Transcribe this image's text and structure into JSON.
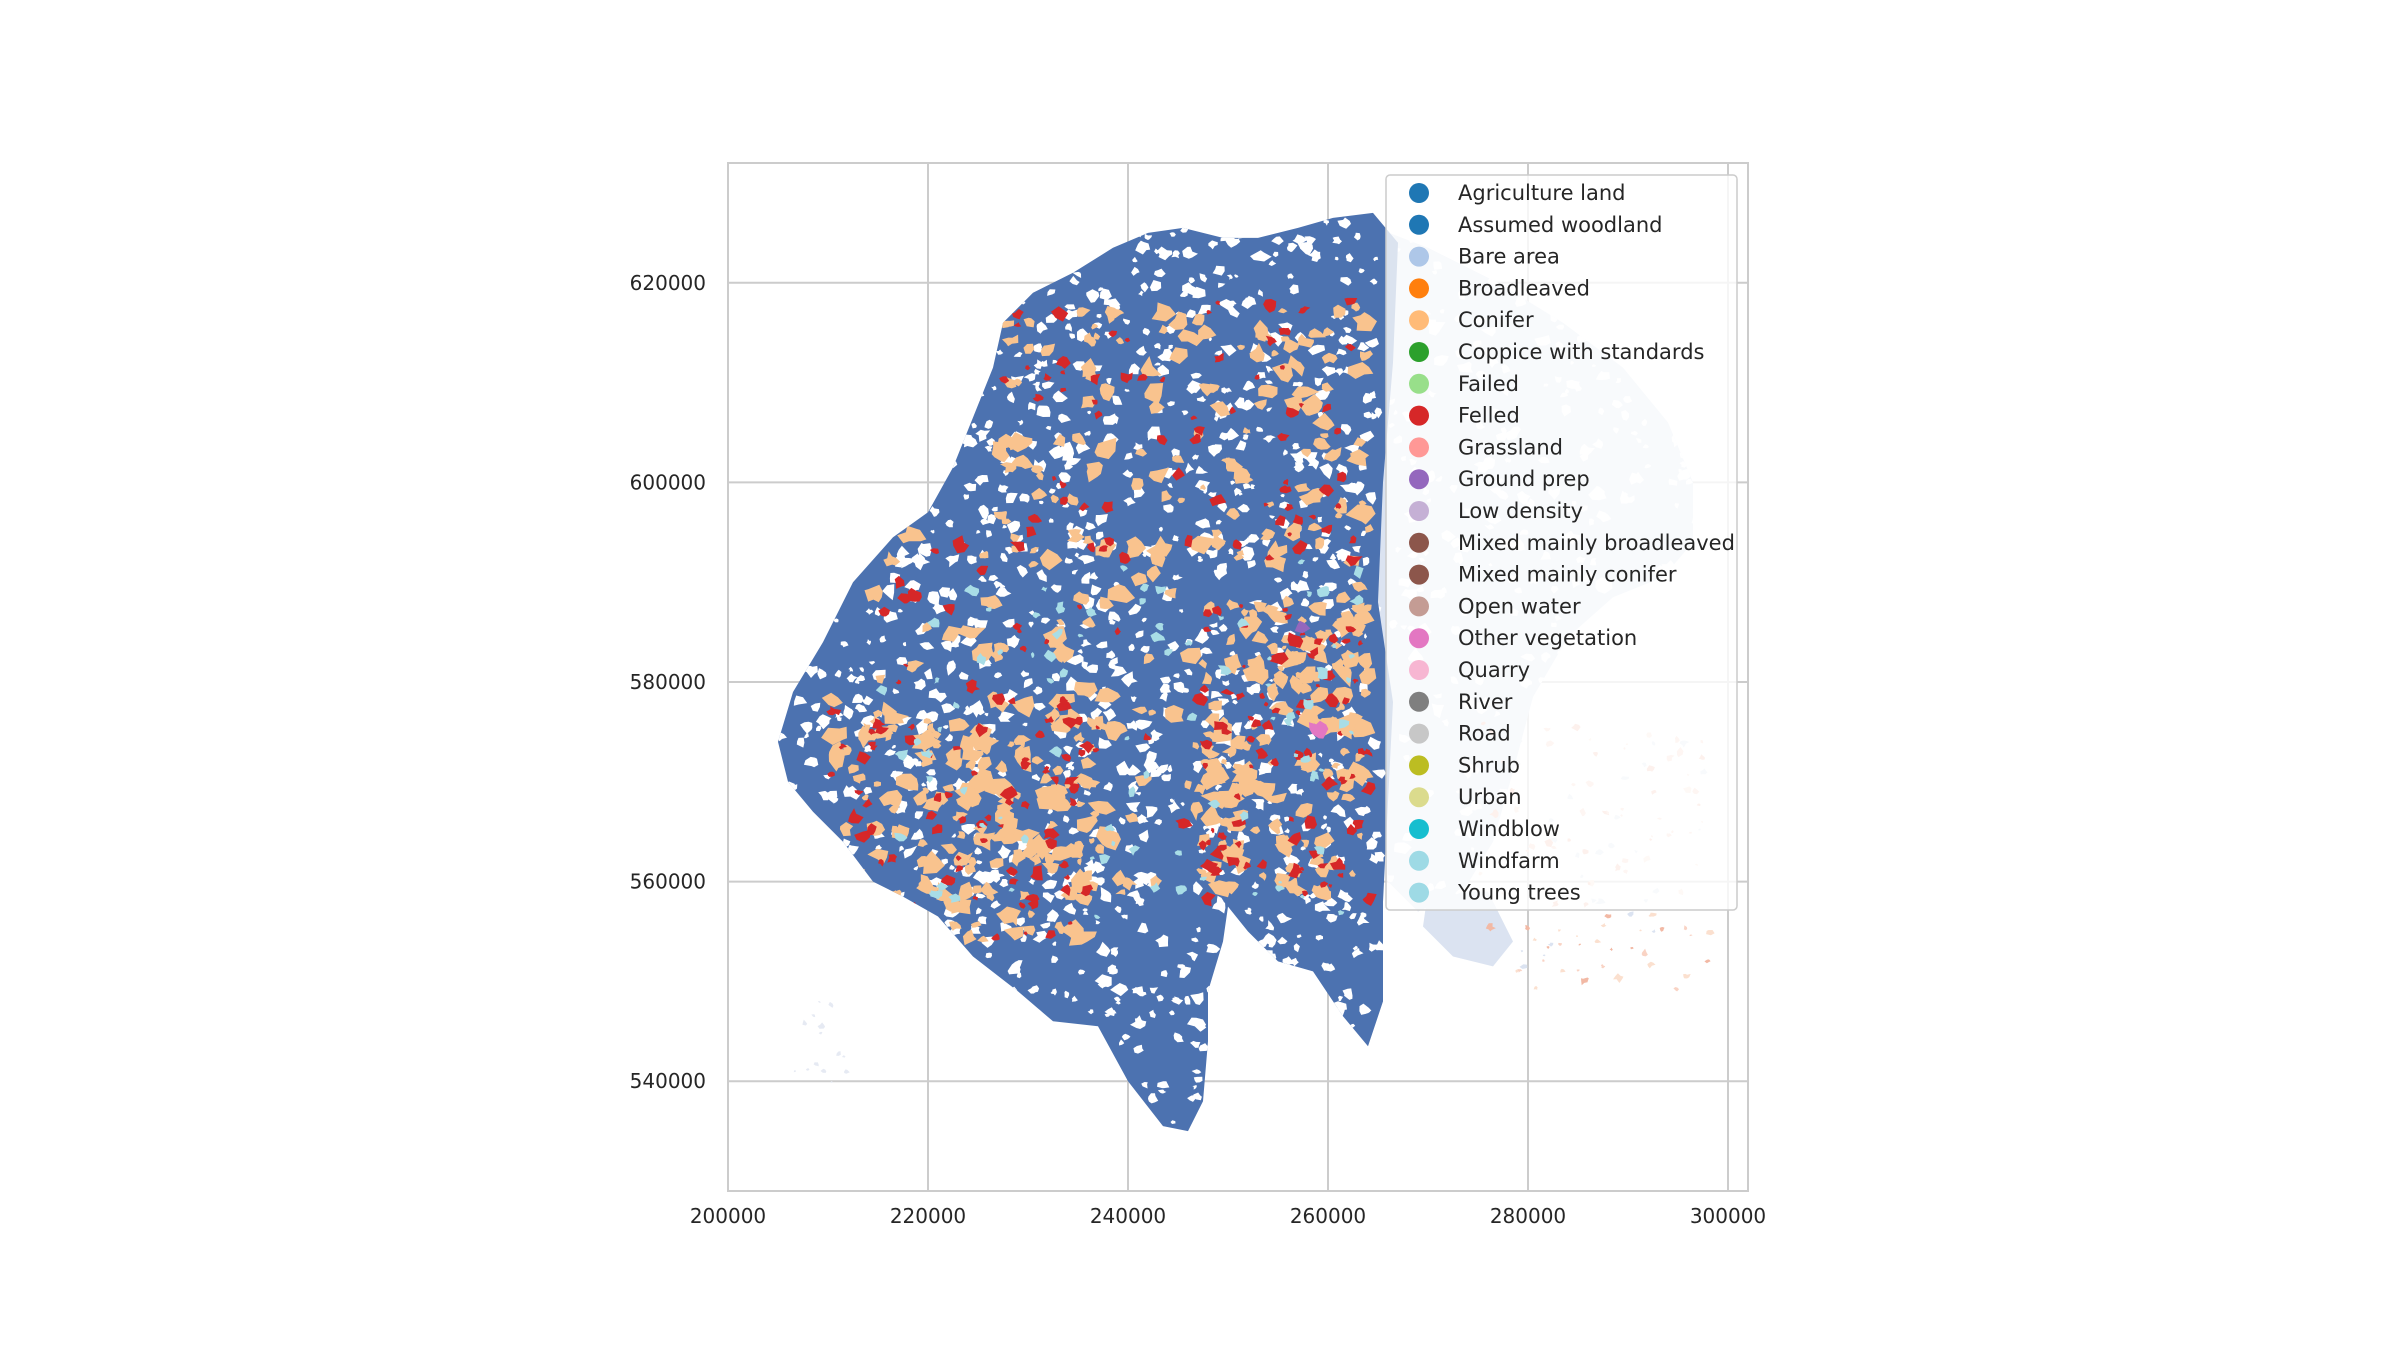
{
  "chart_data": {
    "type": "choropleth-map",
    "x_axis": {
      "range": [
        200000,
        302000
      ],
      "ticks": [
        200000,
        220000,
        240000,
        260000,
        280000,
        300000
      ],
      "tick_labels": [
        "200000",
        "220000",
        "240000",
        "260000",
        "280000",
        "300000"
      ]
    },
    "y_axis": {
      "range": [
        529000,
        632000
      ],
      "ticks": [
        540000,
        560000,
        580000,
        600000,
        620000
      ],
      "tick_labels": [
        "540000",
        "560000",
        "580000",
        "600000",
        "620000"
      ]
    },
    "grid": true,
    "legend": {
      "placement": "upper-right",
      "entries": [
        {
          "label": "Agriculture land",
          "color": "#1f77b4"
        },
        {
          "label": "Assumed woodland",
          "color": "#1f77b4"
        },
        {
          "label": "Bare area",
          "color": "#aec7e8"
        },
        {
          "label": "Broadleaved",
          "color": "#ff7f0e"
        },
        {
          "label": "Conifer",
          "color": "#ffbb78"
        },
        {
          "label": "Coppice with standards",
          "color": "#2ca02c"
        },
        {
          "label": "Failed",
          "color": "#98df8a"
        },
        {
          "label": "Felled",
          "color": "#d62728"
        },
        {
          "label": "Grassland",
          "color": "#ff9896"
        },
        {
          "label": "Ground prep",
          "color": "#9467bd"
        },
        {
          "label": "Low density",
          "color": "#c5b0d5"
        },
        {
          "label": "Mixed mainly broadleaved",
          "color": "#8c564b"
        },
        {
          "label": "Mixed mainly conifer",
          "color": "#8c564b"
        },
        {
          "label": "Open water",
          "color": "#c49c94"
        },
        {
          "label": "Other vegetation",
          "color": "#e377c2"
        },
        {
          "label": "Quarry",
          "color": "#f7b6d2"
        },
        {
          "label": "River",
          "color": "#7f7f7f"
        },
        {
          "label": "Road",
          "color": "#c7c7c7"
        },
        {
          "label": "Shrub",
          "color": "#bcbd22"
        },
        {
          "label": "Urban",
          "color": "#dbdb8d"
        },
        {
          "label": "Windblow",
          "color": "#17becf"
        },
        {
          "label": "Windfarm",
          "color": "#9edae5"
        },
        {
          "label": "Young trees",
          "color": "#9edae5"
        }
      ]
    },
    "map_colors": {
      "woodland_fill": "#4c72b0",
      "bare_area_fill": "#dbe3f1",
      "conifer_patch": "#f9c38e",
      "felled_patch": "#d62728",
      "young_trees_patch": "#a8dde6",
      "other_vegetation_patch": "#e377c2",
      "ground_prep_patch": "#9467bd"
    },
    "region_outline_data_units": {
      "woodland": [
        [
          205000,
          574000
        ],
        [
          206500,
          579000
        ],
        [
          209500,
          584000
        ],
        [
          212500,
          590000
        ],
        [
          216500,
          594500
        ],
        [
          220000,
          597000
        ],
        [
          222500,
          601500
        ],
        [
          224500,
          606500
        ],
        [
          226500,
          611500
        ],
        [
          227500,
          616000
        ],
        [
          230500,
          619000
        ],
        [
          234500,
          621000
        ],
        [
          238500,
          623500
        ],
        [
          242000,
          625000
        ],
        [
          245500,
          625500
        ],
        [
          249500,
          624500
        ],
        [
          253000,
          624500
        ],
        [
          257000,
          625500
        ],
        [
          260500,
          626500
        ],
        [
          264500,
          627000
        ],
        [
          267000,
          624000
        ],
        [
          266500,
          612000
        ],
        [
          265500,
          600000
        ],
        [
          265000,
          588000
        ],
        [
          266500,
          578000
        ],
        [
          266000,
          568000
        ],
        [
          265500,
          558000
        ],
        [
          265500,
          548000
        ],
        [
          264000,
          543500
        ],
        [
          261500,
          546500
        ],
        [
          258500,
          551000
        ],
        [
          255000,
          552000
        ],
        [
          252000,
          555000
        ],
        [
          250000,
          557500
        ],
        [
          249500,
          554000
        ],
        [
          248000,
          549000
        ],
        [
          248000,
          544000
        ],
        [
          247500,
          538000
        ],
        [
          246000,
          535000
        ],
        [
          243500,
          535500
        ],
        [
          240000,
          540000
        ],
        [
          237000,
          545500
        ],
        [
          232500,
          546000
        ],
        [
          229000,
          549000
        ],
        [
          224500,
          552500
        ],
        [
          221000,
          556500
        ],
        [
          217500,
          558500
        ],
        [
          214500,
          560000
        ],
        [
          211500,
          564000
        ],
        [
          208500,
          567000
        ],
        [
          206000,
          570000
        ]
      ],
      "bare_area_east": [
        [
          263500,
          626000
        ],
        [
          270000,
          623500
        ],
        [
          277000,
          620000
        ],
        [
          283500,
          616000
        ],
        [
          289500,
          611500
        ],
        [
          294000,
          606000
        ],
        [
          296500,
          600000
        ],
        [
          296500,
          594000
        ],
        [
          293500,
          590500
        ],
        [
          288500,
          588500
        ],
        [
          284000,
          584500
        ],
        [
          280500,
          578500
        ],
        [
          278500,
          571000
        ],
        [
          276500,
          564000
        ],
        [
          273500,
          559000
        ],
        [
          269000,
          557000
        ],
        [
          266000,
          560000
        ],
        [
          265500,
          572000
        ],
        [
          265000,
          588000
        ],
        [
          265500,
          604000
        ],
        [
          264500,
          617000
        ]
      ],
      "bare_area_south_extension": [
        [
          270000,
          559000
        ],
        [
          276000,
          559000
        ],
        [
          278500,
          554000
        ],
        [
          276500,
          551500
        ],
        [
          272500,
          552500
        ],
        [
          269500,
          555500
        ]
      ]
    }
  }
}
